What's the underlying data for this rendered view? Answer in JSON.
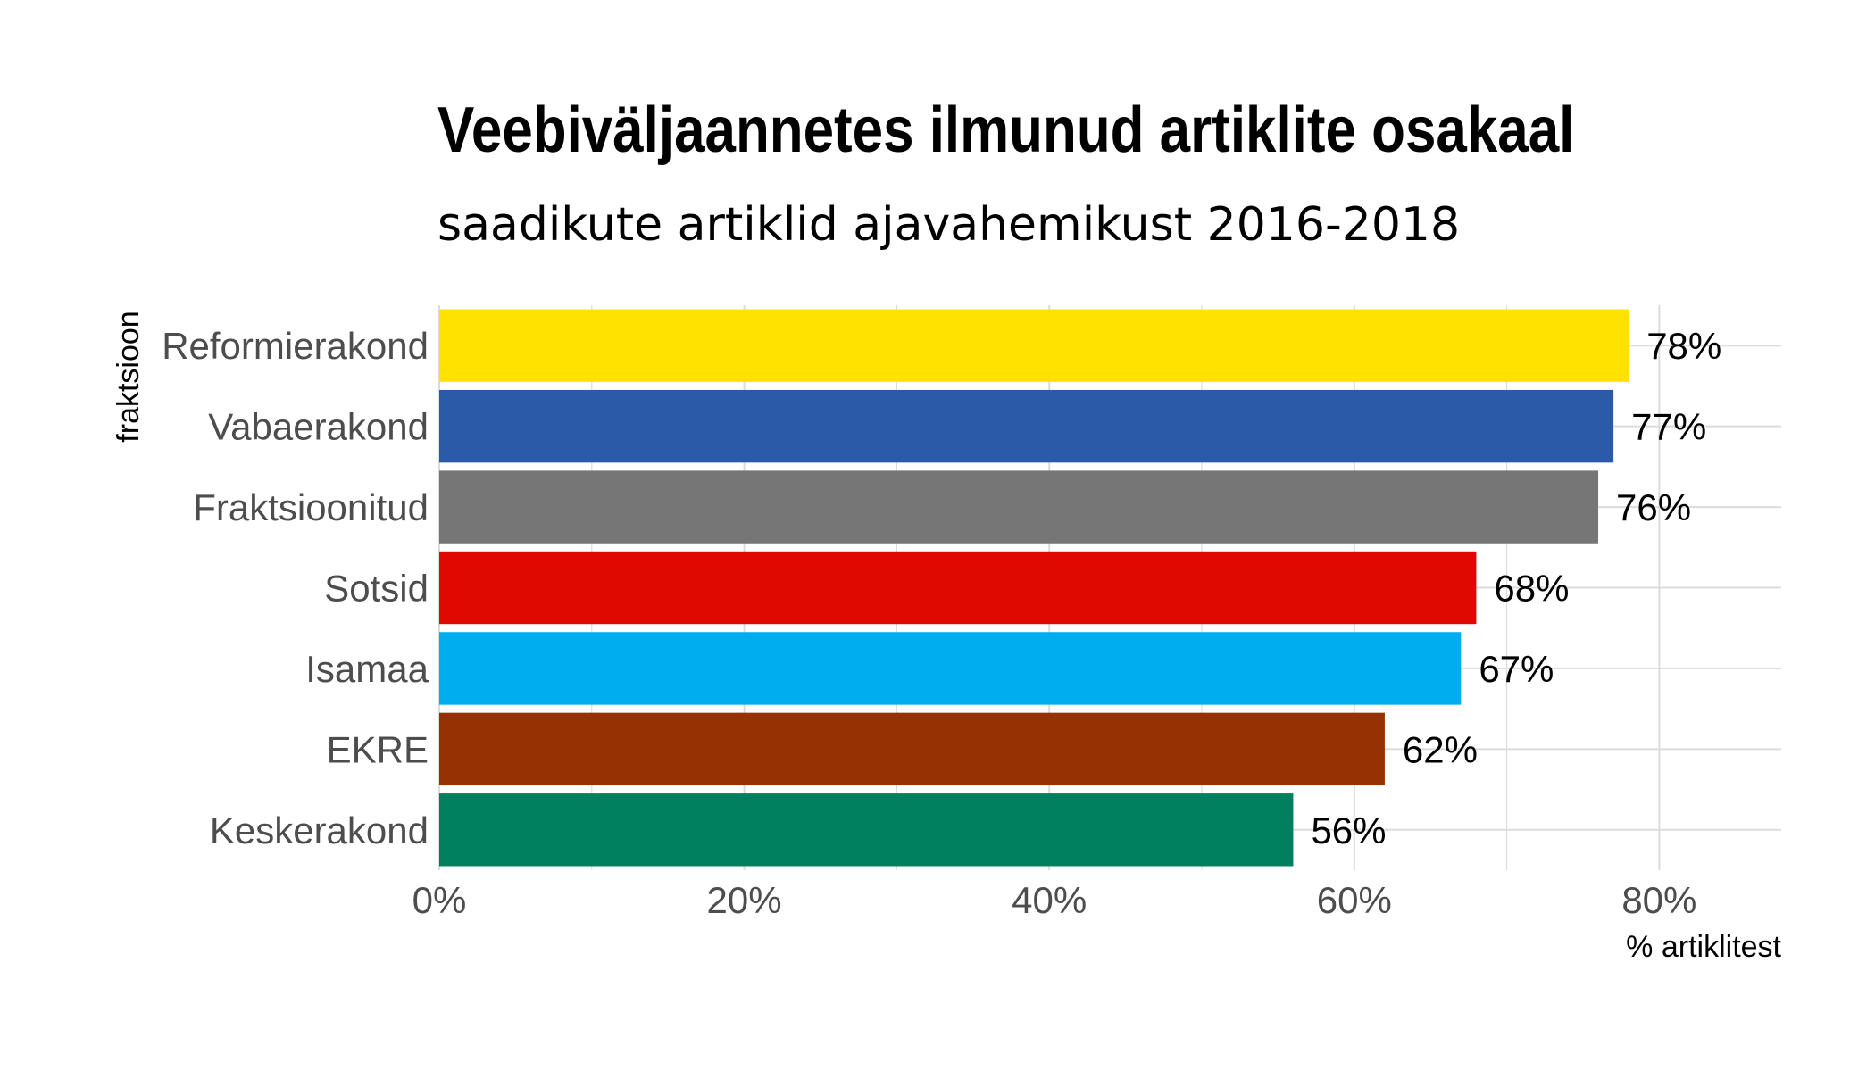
{
  "chart_data": {
    "type": "bar",
    "orientation": "horizontal",
    "title": "Veebiväljaannetes ilmunud artiklite osakaal",
    "subtitle": "saadikute artiklid ajavahemikust 2016-2018",
    "xlabel": "% artiklitest",
    "ylabel": "fraktsioon",
    "xlim": [
      0,
      88
    ],
    "xticks": [
      0,
      20,
      40,
      60,
      80
    ],
    "xtick_labels": [
      "0%",
      "20%",
      "40%",
      "60%",
      "80%"
    ],
    "grid": true,
    "categories": [
      "Reformierakond",
      "Vabaerakond",
      "Fraktsioonitud",
      "Sotsid",
      "Isamaa",
      "EKRE",
      "Keskerakond"
    ],
    "values": [
      78,
      77,
      76,
      68,
      67,
      62,
      56
    ],
    "value_labels": [
      "78%",
      "77%",
      "76%",
      "68%",
      "67%",
      "62%",
      "56%"
    ],
    "colors": [
      "#FFE200",
      "#2B5BA8",
      "#767676",
      "#E00900",
      "#00AEEF",
      "#963201",
      "#00805E"
    ]
  }
}
